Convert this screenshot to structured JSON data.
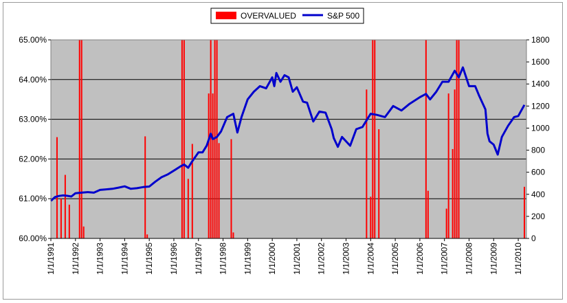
{
  "chart_data": {
    "type": "bar",
    "legend": {
      "placement": "top-center",
      "items": [
        {
          "label": "OVERVALUED",
          "color": "#ff0000",
          "kind": "bar"
        },
        {
          "label": "S&P 500",
          "color": "#0000cc",
          "kind": "line"
        }
      ]
    },
    "plot_background": "#c0c0c0",
    "grid": true,
    "x_axis": {
      "type": "date",
      "range": [
        "1991-01-01",
        "2010-05-01"
      ],
      "tick_labels": [
        "1/1/1991",
        "1/1/1992",
        "1/1/1993",
        "1/1/1994",
        "1/1/1995",
        "1/1/1996",
        "1/1/1997",
        "1/1/1998",
        "1/1/1999",
        "1/1/2000",
        "1/1/2001",
        "1/1/2002",
        "1/1/2003",
        "1/1/2004",
        "1/1/2005",
        "1/1/2006",
        "1/1/2007",
        "1/1/2008",
        "1/1/2009",
        "1/1/2010"
      ]
    },
    "y_left": {
      "range": [
        60,
        65
      ],
      "tick_labels": [
        "60.00%",
        "61.00%",
        "62.00%",
        "63.00%",
        "64.00%",
        "65.00%"
      ]
    },
    "y_right": {
      "range": [
        0,
        1800
      ],
      "tick_labels": [
        "0",
        "200",
        "400",
        "600",
        "800",
        "1000",
        "1200",
        "1400",
        "1600",
        "1800"
      ]
    },
    "series": [
      {
        "name": "OVERVALUED",
        "type": "bar",
        "axis": "left",
        "color": "#ff0000",
        "points": [
          [
            "1991-04-01",
            62.55
          ],
          [
            "1991-06-01",
            61.0
          ],
          [
            "1991-08-01",
            61.6
          ],
          [
            "1991-10-01",
            60.85
          ],
          [
            "1992-03-01",
            65.0
          ],
          [
            "1992-04-01",
            65.0
          ],
          [
            "1992-05-01",
            60.3
          ],
          [
            "1994-11-01",
            62.57
          ],
          [
            "1994-12-01",
            60.1
          ],
          [
            "1996-05-01",
            65.0
          ],
          [
            "1996-06-01",
            65.0
          ],
          [
            "1996-08-01",
            61.5
          ],
          [
            "1996-10-01",
            62.38
          ],
          [
            "1997-06-01",
            63.65
          ],
          [
            "1997-07-01",
            65.0
          ],
          [
            "1997-08-01",
            63.65
          ],
          [
            "1997-09-01",
            65.0
          ],
          [
            "1997-10-01",
            65.0
          ],
          [
            "1997-11-01",
            62.4
          ],
          [
            "1998-05-01",
            62.5
          ],
          [
            "1998-06-01",
            60.15
          ],
          [
            "2003-11-01",
            63.75
          ],
          [
            "2004-01-01",
            61.05
          ],
          [
            "2004-02-01",
            65.0
          ],
          [
            "2004-03-01",
            65.0
          ],
          [
            "2004-05-01",
            62.75
          ],
          [
            "2006-04-01",
            65.0
          ],
          [
            "2006-05-01",
            61.2
          ],
          [
            "2007-02-01",
            60.75
          ],
          [
            "2007-03-01",
            63.65
          ],
          [
            "2007-05-01",
            62.25
          ],
          [
            "2007-06-01",
            63.75
          ],
          [
            "2007-07-01",
            65.0
          ],
          [
            "2007-08-01",
            65.0
          ],
          [
            "2010-04-01",
            61.3
          ]
        ]
      },
      {
        "name": "S&P 500",
        "type": "line",
        "axis": "right",
        "color": "#0000cc",
        "points": [
          [
            "1991-01-01",
            340
          ],
          [
            "1991-03-01",
            375
          ],
          [
            "1991-05-01",
            385
          ],
          [
            "1991-07-01",
            390
          ],
          [
            "1991-09-01",
            386
          ],
          [
            "1991-11-01",
            380
          ],
          [
            "1992-01-01",
            410
          ],
          [
            "1992-04-01",
            415
          ],
          [
            "1992-07-01",
            420
          ],
          [
            "1992-10-01",
            415
          ],
          [
            "1993-01-01",
            440
          ],
          [
            "1993-04-01",
            445
          ],
          [
            "1993-07-01",
            450
          ],
          [
            "1993-10-01",
            460
          ],
          [
            "1994-01-01",
            472
          ],
          [
            "1994-04-01",
            450
          ],
          [
            "1994-07-01",
            455
          ],
          [
            "1994-10-01",
            465
          ],
          [
            "1995-01-01",
            470
          ],
          [
            "1995-04-01",
            515
          ],
          [
            "1995-07-01",
            555
          ],
          [
            "1995-10-01",
            580
          ],
          [
            "1996-01-01",
            615
          ],
          [
            "1996-04-01",
            650
          ],
          [
            "1996-06-01",
            670
          ],
          [
            "1996-08-01",
            640
          ],
          [
            "1996-10-01",
            700
          ],
          [
            "1997-01-01",
            780
          ],
          [
            "1997-03-01",
            780
          ],
          [
            "1997-05-01",
            840
          ],
          [
            "1997-07-01",
            950
          ],
          [
            "1997-08-01",
            900
          ],
          [
            "1997-10-01",
            920
          ],
          [
            "1997-12-01",
            970
          ],
          [
            "1998-03-01",
            1100
          ],
          [
            "1998-06-01",
            1130
          ],
          [
            "1998-08-01",
            960
          ],
          [
            "1998-10-01",
            1100
          ],
          [
            "1999-01-01",
            1260
          ],
          [
            "1999-04-01",
            1330
          ],
          [
            "1999-07-01",
            1380
          ],
          [
            "1999-10-01",
            1360
          ],
          [
            "2000-01-01",
            1460
          ],
          [
            "2000-02-01",
            1380
          ],
          [
            "2000-03-01",
            1500
          ],
          [
            "2000-05-01",
            1420
          ],
          [
            "2000-07-01",
            1480
          ],
          [
            "2000-09-01",
            1460
          ],
          [
            "2000-11-01",
            1330
          ],
          [
            "2001-01-01",
            1370
          ],
          [
            "2001-04-01",
            1240
          ],
          [
            "2001-06-01",
            1230
          ],
          [
            "2001-09-01",
            1060
          ],
          [
            "2001-12-01",
            1150
          ],
          [
            "2002-03-01",
            1140
          ],
          [
            "2002-06-01",
            990
          ],
          [
            "2002-07-01",
            910
          ],
          [
            "2002-09-01",
            830
          ],
          [
            "2002-11-01",
            920
          ],
          [
            "2003-03-01",
            840
          ],
          [
            "2003-06-01",
            990
          ],
          [
            "2003-09-01",
            1010
          ],
          [
            "2004-01-01",
            1130
          ],
          [
            "2004-04-01",
            1120
          ],
          [
            "2004-08-01",
            1100
          ],
          [
            "2004-12-01",
            1200
          ],
          [
            "2005-04-01",
            1160
          ],
          [
            "2005-08-01",
            1220
          ],
          [
            "2006-01-01",
            1280
          ],
          [
            "2006-04-01",
            1310
          ],
          [
            "2006-06-01",
            1260
          ],
          [
            "2006-09-01",
            1330
          ],
          [
            "2006-12-01",
            1420
          ],
          [
            "2007-03-01",
            1420
          ],
          [
            "2007-06-01",
            1520
          ],
          [
            "2007-08-01",
            1460
          ],
          [
            "2007-10-01",
            1550
          ],
          [
            "2008-01-01",
            1380
          ],
          [
            "2008-04-01",
            1380
          ],
          [
            "2008-06-01",
            1290
          ],
          [
            "2008-09-01",
            1170
          ],
          [
            "2008-10-01",
            950
          ],
          [
            "2008-11-01",
            880
          ],
          [
            "2009-01-01",
            850
          ],
          [
            "2009-03-01",
            760
          ],
          [
            "2009-05-01",
            920
          ],
          [
            "2009-08-01",
            1020
          ],
          [
            "2009-11-01",
            1100
          ],
          [
            "2010-01-01",
            1110
          ],
          [
            "2010-04-01",
            1210
          ]
        ]
      }
    ]
  }
}
